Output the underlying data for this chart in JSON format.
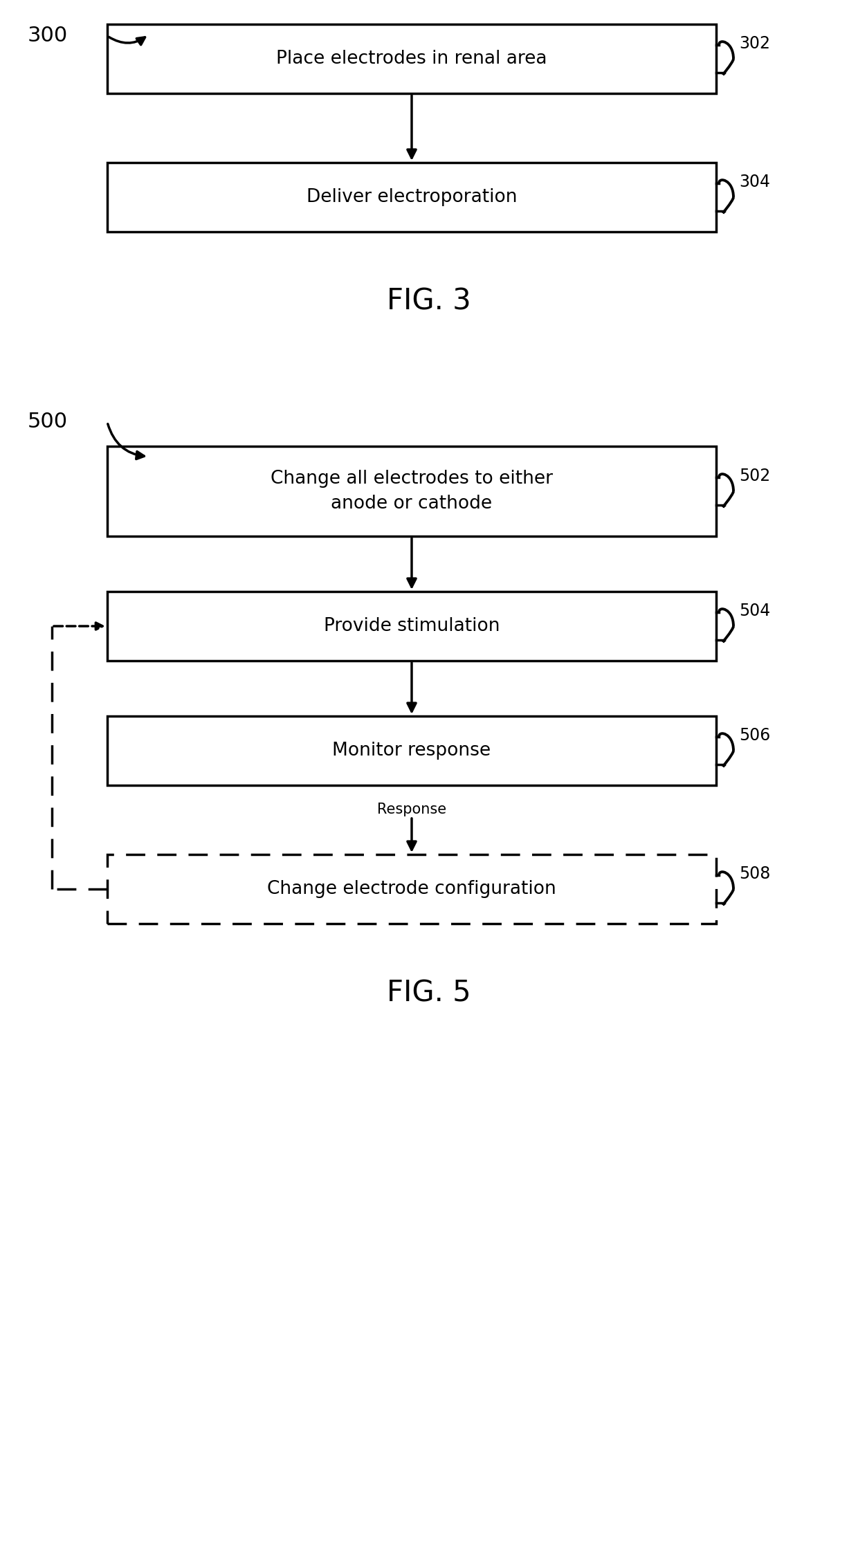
{
  "background": "#ffffff",
  "text_color": "#000000",
  "font_size_box": 19,
  "font_size_label": 22,
  "font_size_fig": 30,
  "font_size_ref": 17,
  "font_size_response": 15,
  "fig3_title": "FIG. 3",
  "fig5_title": "FIG. 5",
  "label300": "300",
  "label500": "500",
  "box302_text": "Place electrodes in renal area",
  "box304_text": "Deliver electroporation",
  "box502_text": "Change all electrodes to either\nanode or cathode",
  "box504_text": "Provide stimulation",
  "box506_text": "Monitor response",
  "box508_text": "Change electrode configuration",
  "ref302": "302",
  "ref304": "304",
  "ref502": "502",
  "ref504": "504",
  "ref506": "506",
  "ref508": "508",
  "response_text": "Response"
}
